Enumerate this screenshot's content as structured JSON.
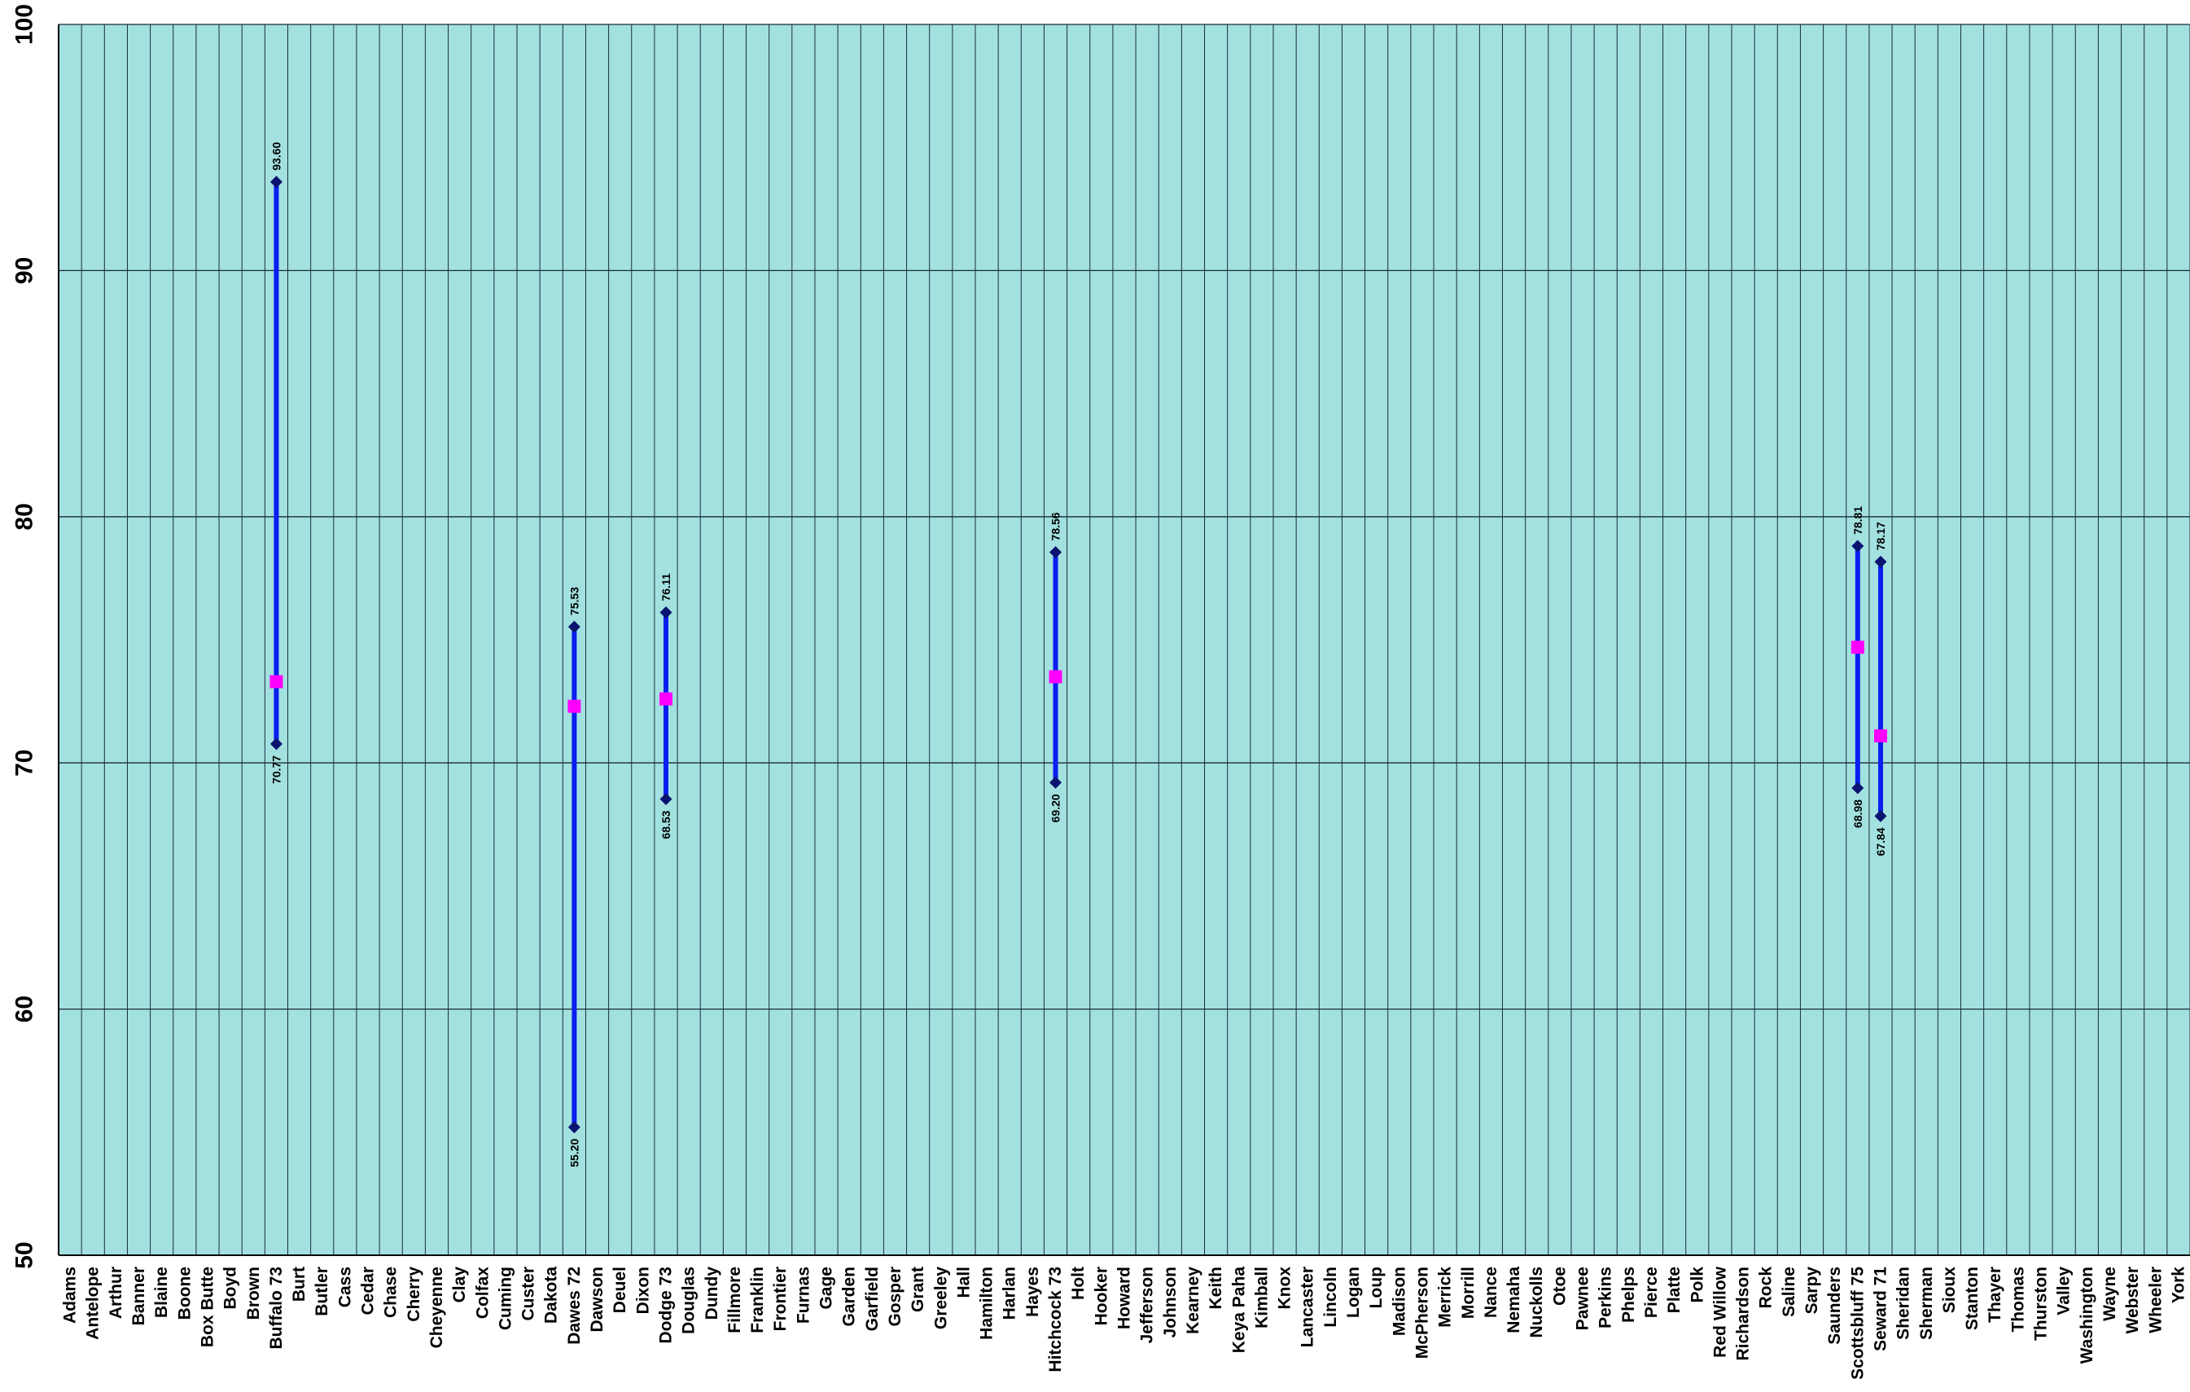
{
  "chart_data": {
    "type": "line",
    "subtype": "high-low-close",
    "ylim": [
      50,
      100
    ],
    "yticks": [
      50,
      60,
      70,
      80,
      90,
      100
    ],
    "grid": true,
    "legend": "none",
    "colors": {
      "plot_background": "#a2e1e0",
      "gridline": "#1b2b3a",
      "range_line": "#0a1ef0",
      "end_marker": "#0a1470",
      "mid_marker": "#ff00ff"
    },
    "categories": [
      "Adams",
      "Antelope",
      "Arthur",
      "Banner",
      "Blaine",
      "Boone",
      "Box Butte",
      "Boyd",
      "Brown",
      "Buffalo 73",
      "Burt",
      "Butler",
      "Cass",
      "Cedar",
      "Chase",
      "Cherry",
      "Cheyenne",
      "Clay",
      "Colfax",
      "Cuming",
      "Custer",
      "Dakota",
      "Dawes 72",
      "Dawson",
      "Deuel",
      "Dixon",
      "Dodge 73",
      "Douglas",
      "Dundy",
      "Fillmore",
      "Franklin",
      "Frontier",
      "Furnas",
      "Gage",
      "Garden",
      "Garfield",
      "Gosper",
      "Grant",
      "Greeley",
      "Hall",
      "Hamilton",
      "Harlan",
      "Hayes",
      "Hitchcock 73",
      "Holt",
      "Hooker",
      "Howard",
      "Jefferson",
      "Johnson",
      "Kearney",
      "Keith",
      "Keya Paha",
      "Kimball",
      "Knox",
      "Lancaster",
      "Lincoln",
      "Logan",
      "Loup",
      "Madison",
      "McPherson",
      "Merrick",
      "Morrill",
      "Nance",
      "Nemaha",
      "Nuckolls",
      "Otoe",
      "Pawnee",
      "Perkins",
      "Phelps",
      "Pierce",
      "Platte",
      "Polk",
      "Red Willow",
      "Richardson",
      "Rock",
      "Saline",
      "Sarpy",
      "Saunders",
      "Scottsbluff 75",
      "Seward 71",
      "Sheridan",
      "Sherman",
      "Sioux",
      "Stanton",
      "Thayer",
      "Thomas",
      "Thurston",
      "Valley",
      "Washington",
      "Wayne",
      "Webster",
      "Wheeler",
      "York"
    ],
    "ranges": [
      {
        "category": "Buffalo 73",
        "high": 93.6,
        "low": 70.77,
        "mid": 73.3,
        "high_label": "93.60",
        "low_label": "70.77"
      },
      {
        "category": "Dawes 72",
        "high": 75.53,
        "low": 55.2,
        "mid": 72.3,
        "high_label": "75.53",
        "low_label": "55.20"
      },
      {
        "category": "Dodge 73",
        "high": 76.11,
        "low": 68.53,
        "mid": 72.6,
        "high_label": "76.11",
        "low_label": "68.53"
      },
      {
        "category": "Hitchcock 73",
        "high": 78.56,
        "low": 69.2,
        "mid": 73.5,
        "high_label": "78.56",
        "low_label": "69.20"
      },
      {
        "category": "Scottsbluff 75",
        "high": 78.81,
        "low": 68.98,
        "mid": 74.7,
        "high_label": "78.81",
        "low_label": "68.98"
      },
      {
        "category": "Seward 71",
        "high": 78.17,
        "low": 67.84,
        "mid": 71.1,
        "high_label": "78.17",
        "low_label": "67.84"
      }
    ]
  }
}
